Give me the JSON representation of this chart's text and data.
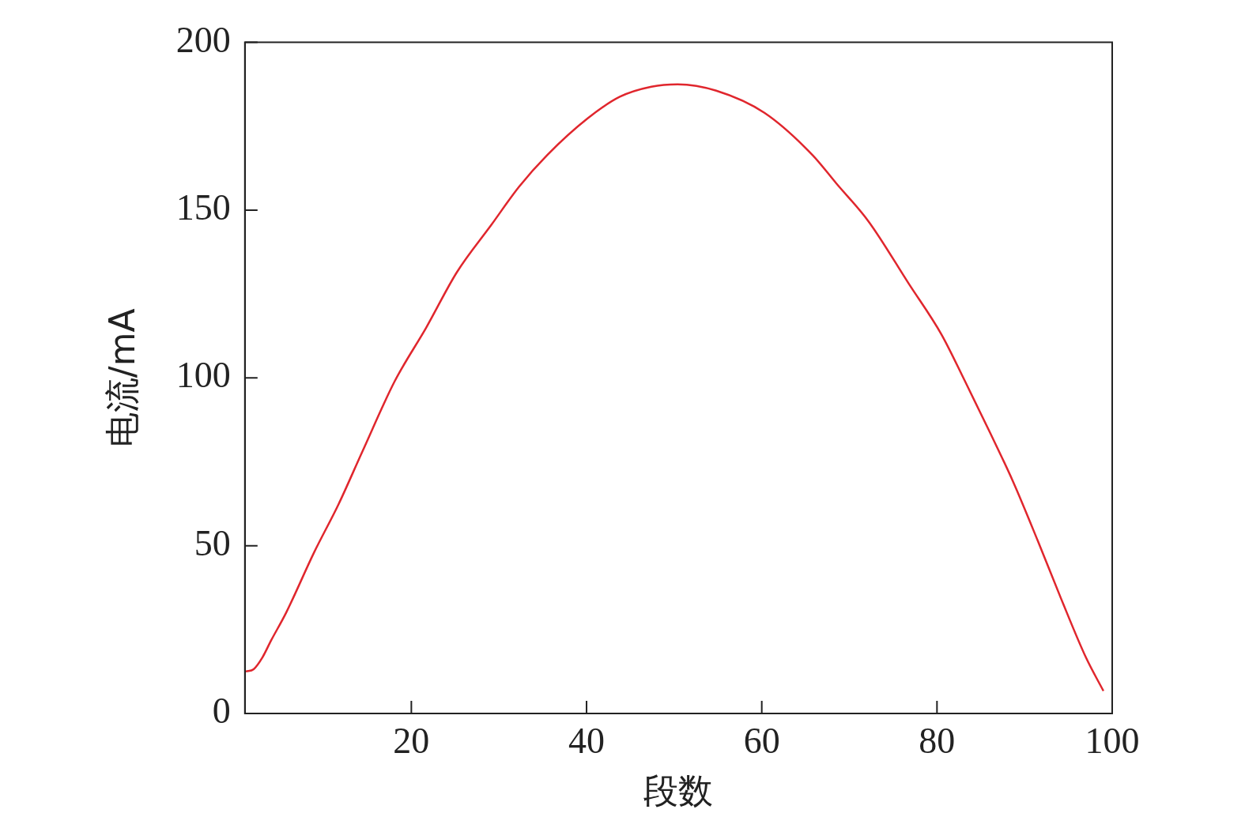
{
  "chart_data": {
    "type": "line",
    "xlabel": "段数",
    "ylabel": "电流/mA",
    "xlim": [
      1,
      100
    ],
    "xticks": [
      20,
      40,
      60,
      80,
      100
    ],
    "ylim": [
      0,
      200
    ],
    "yticks": [
      0,
      50,
      100,
      150,
      200
    ],
    "grid": false,
    "legend": false,
    "marker": "none",
    "line_style": "solid",
    "series": [
      {
        "color": "#e0262d",
        "x": [
          1.1,
          2,
          3,
          4,
          5.7,
          8.9,
          11.7,
          14.4,
          18.1,
          21.7,
          25.2,
          29.1,
          32.3,
          35.5,
          40.1,
          43.8,
          47.4,
          50.4,
          54.8,
          60.3,
          65.8,
          68.5,
          72.2,
          76.8,
          80.5,
          83.2,
          86,
          88.7,
          91.5,
          94.2,
          97,
          99
        ],
        "values": [
          12.5,
          13.2,
          16.7,
          21.8,
          30,
          48,
          62.4,
          78,
          99,
          115,
          131.5,
          145.5,
          157,
          166.4,
          177.3,
          183.8,
          186.8,
          187.5,
          185.6,
          179,
          166.4,
          158,
          146.6,
          128,
          113,
          99,
          84,
          69,
          51.5,
          34,
          16.7,
          6.7
        ]
      }
    ]
  }
}
